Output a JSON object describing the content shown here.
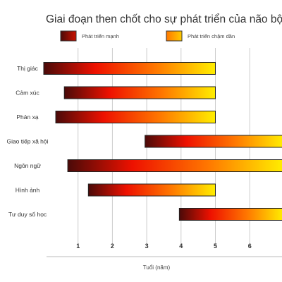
{
  "chart_data": {
    "type": "bar",
    "orientation": "horizontal",
    "title": "Giai đoạn then chốt cho sự phát triển của não bộ",
    "xlabel": "Tuổi (năm)",
    "ylabel": "",
    "xlim": [
      0,
      7
    ],
    "x_ticks": [
      "1",
      "2",
      "3",
      "4",
      "5",
      "6"
    ],
    "grid": true,
    "legend": {
      "position": "top",
      "entries": [
        {
          "label": "Phát triển mạnh",
          "color": "#cc1100"
        },
        {
          "label": "Phát triển chậm dần",
          "color": "#ffcc00"
        }
      ]
    },
    "colors": {
      "dark_start": "#4a0a08",
      "mid_red": "#ee1100",
      "orange": "#ff7700",
      "end_yellow": "#ffee00"
    },
    "categories": [
      "Thị giác",
      "Cảm xúc",
      "Phản xạ",
      "Giao tiếp xã hội",
      "Ngôn ngữ",
      "Hình ảnh",
      "Tư duy số học"
    ],
    "ranges": [
      {
        "start": 0.0,
        "end": 5.0
      },
      {
        "start": 0.6,
        "end": 5.0
      },
      {
        "start": 0.35,
        "end": 5.0
      },
      {
        "start": 2.95,
        "end": 7.0
      },
      {
        "start": 0.7,
        "end": 7.0
      },
      {
        "start": 1.3,
        "end": 5.0
      },
      {
        "start": 3.95,
        "end": 7.0
      }
    ]
  }
}
